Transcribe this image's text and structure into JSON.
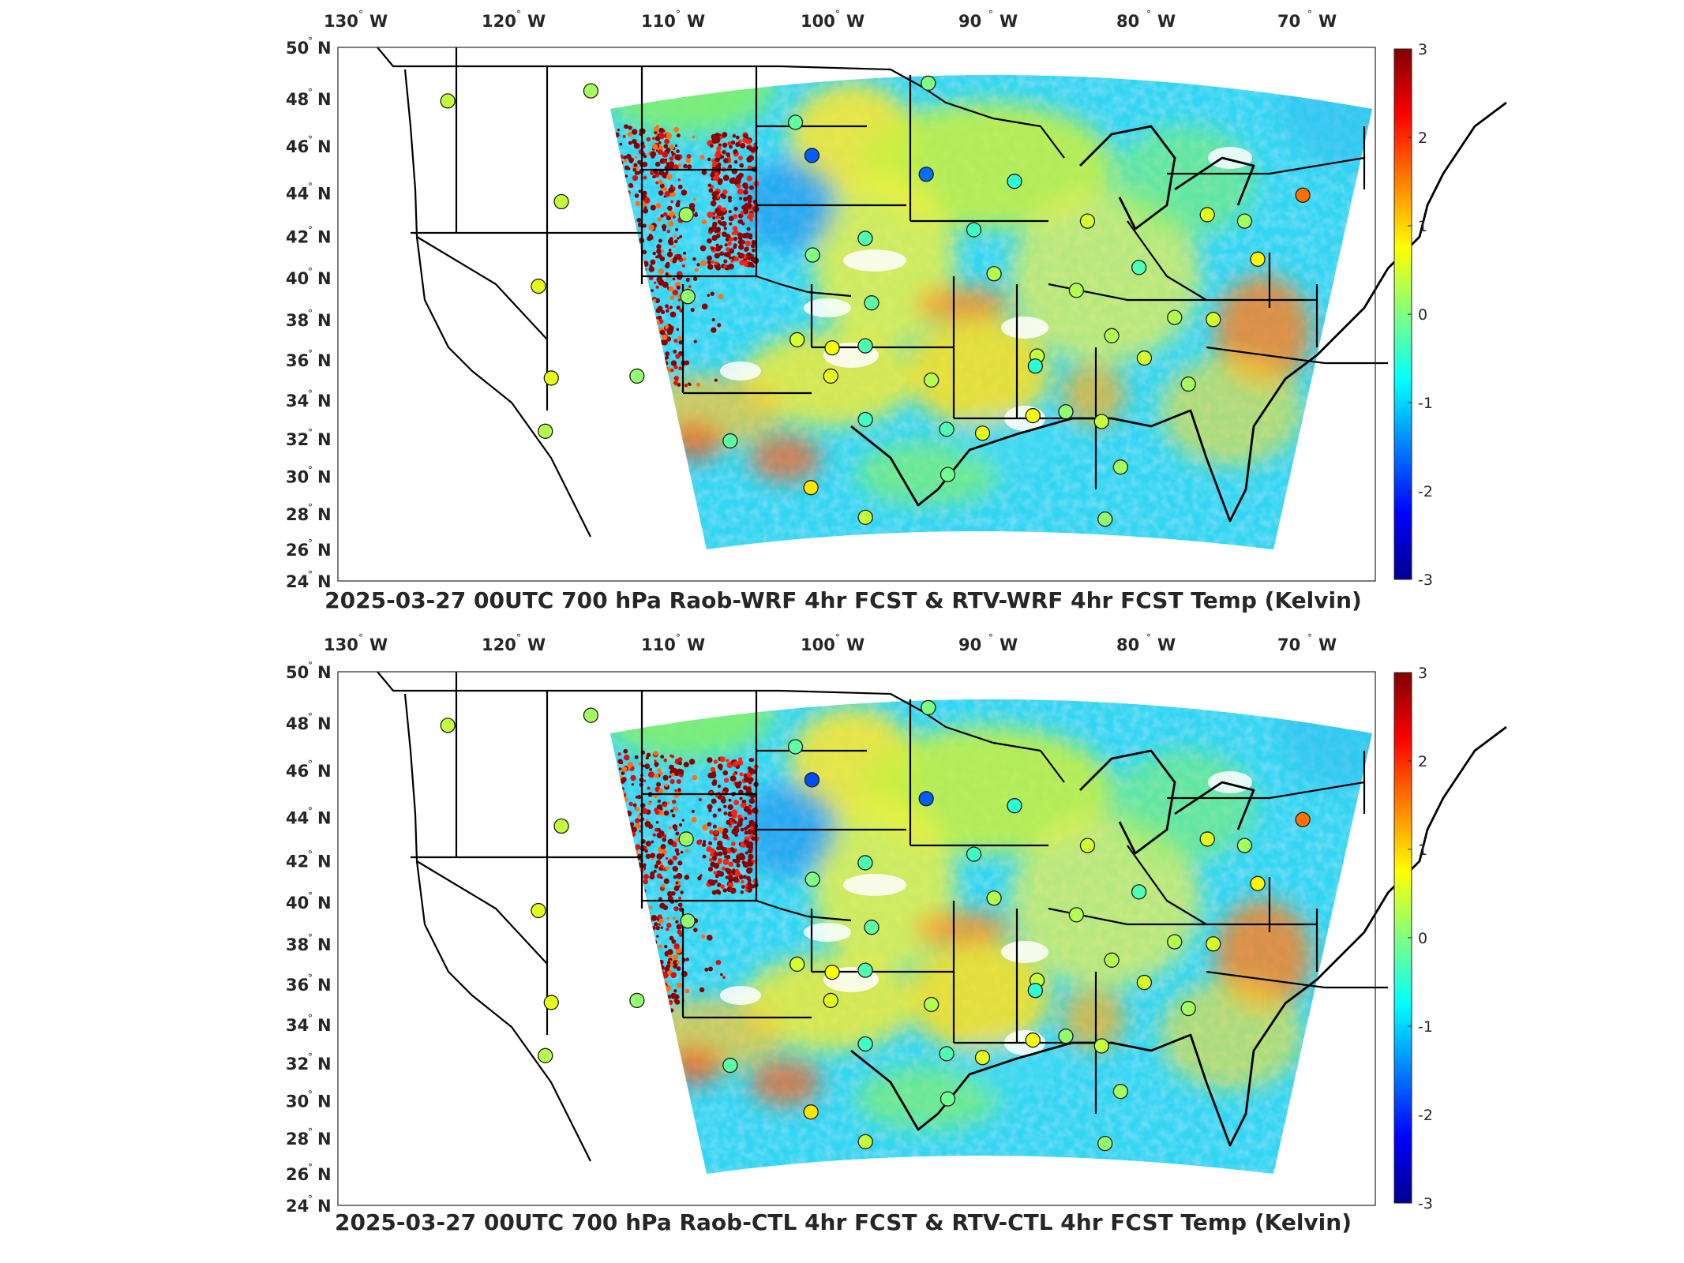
{
  "colors": {
    "colormap": [
      "#00008f",
      "#0000ff",
      "#0080ff",
      "#00ffff",
      "#80ff80",
      "#ffff00",
      "#ff8000",
      "#ff0000",
      "#800000"
    ],
    "background": "#ffffff",
    "border": "#000000"
  },
  "colorbar": {
    "min": -3,
    "max": 3,
    "ticks": [
      "3",
      "2",
      "1",
      "0",
      "-1",
      "-2",
      "-3"
    ]
  },
  "longitude_ticks": [
    {
      "v": "130",
      "s": "W"
    },
    {
      "v": "120",
      "s": "W"
    },
    {
      "v": "110",
      "s": "W"
    },
    {
      "v": "100",
      "s": "W"
    },
    {
      "v": "90",
      "s": "W"
    },
    {
      "v": "80",
      "s": "W"
    },
    {
      "v": "70",
      "s": "W"
    }
  ],
  "latitude_ticks": [
    {
      "v": "50",
      "s": "N"
    },
    {
      "v": "48",
      "s": "N"
    },
    {
      "v": "46",
      "s": "N"
    },
    {
      "v": "44",
      "s": "N"
    },
    {
      "v": "42",
      "s": "N"
    },
    {
      "v": "40",
      "s": "N"
    },
    {
      "v": "38",
      "s": "N"
    },
    {
      "v": "36",
      "s": "N"
    },
    {
      "v": "34",
      "s": "N"
    },
    {
      "v": "32",
      "s": "N"
    },
    {
      "v": "30",
      "s": "N"
    },
    {
      "v": "28",
      "s": "N"
    },
    {
      "v": "26",
      "s": "N"
    },
    {
      "v": "24",
      "s": "N"
    }
  ],
  "panels": [
    {
      "title": "2025-03-27 00UTC 700 hPa Raob-WRF 4hr FCST & RTV-WRF 4hr FCST Temp (Kelvin)",
      "stations": [
        {
          "lon": -123.0,
          "lat": 47.9,
          "v": 0.4
        },
        {
          "lon": -114.2,
          "lat": 48.3,
          "v": 0.2
        },
        {
          "lon": -101.7,
          "lat": 47.0,
          "v": -0.2
        },
        {
          "lon": -100.7,
          "lat": 45.6,
          "v": -1.7
        },
        {
          "lon": -93.6,
          "lat": 44.8,
          "v": -1.6
        },
        {
          "lon": -93.5,
          "lat": 48.6,
          "v": 0.0
        },
        {
          "lon": -116.2,
          "lat": 43.6,
          "v": 0.4
        },
        {
          "lon": -108.5,
          "lat": 43.0,
          "v": 0.2
        },
        {
          "lon": -117.8,
          "lat": 39.6,
          "v": 0.6
        },
        {
          "lon": -108.5,
          "lat": 39.1,
          "v": 0.1
        },
        {
          "lon": -100.7,
          "lat": 41.1,
          "v": 0.0
        },
        {
          "lon": -97.4,
          "lat": 41.9,
          "v": -0.3
        },
        {
          "lon": -97.0,
          "lat": 38.8,
          "v": -0.2
        },
        {
          "lon": -101.7,
          "lat": 37.0,
          "v": 0.5
        },
        {
          "lon": -99.5,
          "lat": 36.6,
          "v": 0.7
        },
        {
          "lon": -99.6,
          "lat": 35.2,
          "v": 0.6
        },
        {
          "lon": -97.4,
          "lat": 36.7,
          "v": -0.3
        },
        {
          "lon": -117.2,
          "lat": 35.1,
          "v": 0.6
        },
        {
          "lon": -111.8,
          "lat": 35.2,
          "v": 0.1
        },
        {
          "lon": -117.7,
          "lat": 32.4,
          "v": 0.3
        },
        {
          "lon": -106.0,
          "lat": 31.9,
          "v": -0.2
        },
        {
          "lon": -97.4,
          "lat": 33.0,
          "v": -0.4
        },
        {
          "lon": -100.9,
          "lat": 29.4,
          "v": 0.9
        },
        {
          "lon": -97.4,
          "lat": 27.8,
          "v": 0.4
        },
        {
          "lon": -93.2,
          "lat": 35.0,
          "v": 0.3
        },
        {
          "lon": -92.2,
          "lat": 32.5,
          "v": -0.3
        },
        {
          "lon": -92.1,
          "lat": 30.1,
          "v": -0.1
        },
        {
          "lon": -89.9,
          "lat": 32.3,
          "v": 0.6
        },
        {
          "lon": -86.7,
          "lat": 33.2,
          "v": 0.7
        },
        {
          "lon": -84.6,
          "lat": 33.4,
          "v": 0.1
        },
        {
          "lon": -86.5,
          "lat": 36.2,
          "v": 0.4
        },
        {
          "lon": -81.8,
          "lat": 37.2,
          "v": 0.3
        },
        {
          "lon": -79.7,
          "lat": 36.1,
          "v": 0.5
        },
        {
          "lon": -82.3,
          "lat": 32.9,
          "v": 0.4
        },
        {
          "lon": -81.0,
          "lat": 30.5,
          "v": 0.2
        },
        {
          "lon": -81.9,
          "lat": 27.7,
          "v": 0.1
        },
        {
          "lon": -76.9,
          "lat": 34.8,
          "v": 0.2
        },
        {
          "lon": -77.9,
          "lat": 38.1,
          "v": 0.3
        },
        {
          "lon": -83.5,
          "lat": 42.7,
          "v": 0.5
        },
        {
          "lon": -84.1,
          "lat": 39.4,
          "v": 0.3
        },
        {
          "lon": -80.2,
          "lat": 40.5,
          "v": -0.3
        },
        {
          "lon": -89.3,
          "lat": 40.2,
          "v": 0.3
        },
        {
          "lon": -88.1,
          "lat": 44.5,
          "v": -0.5
        },
        {
          "lon": -90.6,
          "lat": 42.3,
          "v": -0.4
        },
        {
          "lon": -73.8,
          "lat": 42.7,
          "v": 0.2
        },
        {
          "lon": -76.1,
          "lat": 43.0,
          "v": 0.6
        },
        {
          "lon": -72.9,
          "lat": 40.9,
          "v": 0.8
        },
        {
          "lon": -70.3,
          "lat": 43.9,
          "v": 1.6
        },
        {
          "lon": -75.5,
          "lat": 38.0,
          "v": 0.5
        },
        {
          "lon": -86.6,
          "lat": 35.7,
          "v": -0.5
        }
      ]
    },
    {
      "title": "2025-03-27 00UTC 700 hPa Raob-CTL 4hr FCST & RTV-CTL 4hr FCST Temp (Kelvin)",
      "stations": [
        {
          "lon": -123.0,
          "lat": 47.9,
          "v": 0.4
        },
        {
          "lon": -114.2,
          "lat": 48.3,
          "v": 0.2
        },
        {
          "lon": -101.7,
          "lat": 47.0,
          "v": -0.2
        },
        {
          "lon": -100.7,
          "lat": 45.6,
          "v": -1.8
        },
        {
          "lon": -93.6,
          "lat": 44.8,
          "v": -1.7
        },
        {
          "lon": -93.5,
          "lat": 48.6,
          "v": 0.0
        },
        {
          "lon": -116.2,
          "lat": 43.6,
          "v": 0.4
        },
        {
          "lon": -108.5,
          "lat": 43.0,
          "v": 0.2
        },
        {
          "lon": -117.8,
          "lat": 39.6,
          "v": 0.6
        },
        {
          "lon": -108.5,
          "lat": 39.1,
          "v": 0.1
        },
        {
          "lon": -100.7,
          "lat": 41.1,
          "v": 0.0
        },
        {
          "lon": -97.4,
          "lat": 41.9,
          "v": -0.3
        },
        {
          "lon": -97.0,
          "lat": 38.8,
          "v": -0.2
        },
        {
          "lon": -101.7,
          "lat": 37.0,
          "v": 0.5
        },
        {
          "lon": -99.5,
          "lat": 36.6,
          "v": 0.7
        },
        {
          "lon": -99.6,
          "lat": 35.2,
          "v": 0.6
        },
        {
          "lon": -97.4,
          "lat": 36.7,
          "v": -0.3
        },
        {
          "lon": -117.2,
          "lat": 35.1,
          "v": 0.6
        },
        {
          "lon": -111.8,
          "lat": 35.2,
          "v": 0.1
        },
        {
          "lon": -117.7,
          "lat": 32.4,
          "v": 0.3
        },
        {
          "lon": -106.0,
          "lat": 31.9,
          "v": -0.2
        },
        {
          "lon": -97.4,
          "lat": 33.0,
          "v": -0.4
        },
        {
          "lon": -100.9,
          "lat": 29.4,
          "v": 0.9
        },
        {
          "lon": -97.4,
          "lat": 27.8,
          "v": 0.4
        },
        {
          "lon": -93.2,
          "lat": 35.0,
          "v": 0.3
        },
        {
          "lon": -92.2,
          "lat": 32.5,
          "v": -0.3
        },
        {
          "lon": -92.1,
          "lat": 30.1,
          "v": -0.1
        },
        {
          "lon": -89.9,
          "lat": 32.3,
          "v": 0.6
        },
        {
          "lon": -86.7,
          "lat": 33.2,
          "v": 0.7
        },
        {
          "lon": -84.6,
          "lat": 33.4,
          "v": 0.1
        },
        {
          "lon": -86.5,
          "lat": 36.2,
          "v": 0.4
        },
        {
          "lon": -81.8,
          "lat": 37.2,
          "v": 0.3
        },
        {
          "lon": -79.7,
          "lat": 36.1,
          "v": 0.5
        },
        {
          "lon": -82.3,
          "lat": 32.9,
          "v": 0.4
        },
        {
          "lon": -81.0,
          "lat": 30.5,
          "v": 0.2
        },
        {
          "lon": -81.9,
          "lat": 27.7,
          "v": 0.1
        },
        {
          "lon": -76.9,
          "lat": 34.8,
          "v": 0.2
        },
        {
          "lon": -77.9,
          "lat": 38.1,
          "v": 0.3
        },
        {
          "lon": -83.5,
          "lat": 42.7,
          "v": 0.5
        },
        {
          "lon": -84.1,
          "lat": 39.4,
          "v": 0.3
        },
        {
          "lon": -80.2,
          "lat": 40.5,
          "v": -0.3
        },
        {
          "lon": -89.3,
          "lat": 40.2,
          "v": 0.3
        },
        {
          "lon": -88.1,
          "lat": 44.5,
          "v": -0.5
        },
        {
          "lon": -90.6,
          "lat": 42.3,
          "v": -0.4
        },
        {
          "lon": -73.8,
          "lat": 42.7,
          "v": 0.2
        },
        {
          "lon": -76.1,
          "lat": 43.0,
          "v": 0.6
        },
        {
          "lon": -72.9,
          "lat": 40.9,
          "v": 0.8
        },
        {
          "lon": -70.3,
          "lat": 43.9,
          "v": 1.6
        },
        {
          "lon": -75.5,
          "lat": 38.0,
          "v": 0.5
        },
        {
          "lon": -86.6,
          "lat": 35.7,
          "v": -0.5
        }
      ]
    }
  ]
}
